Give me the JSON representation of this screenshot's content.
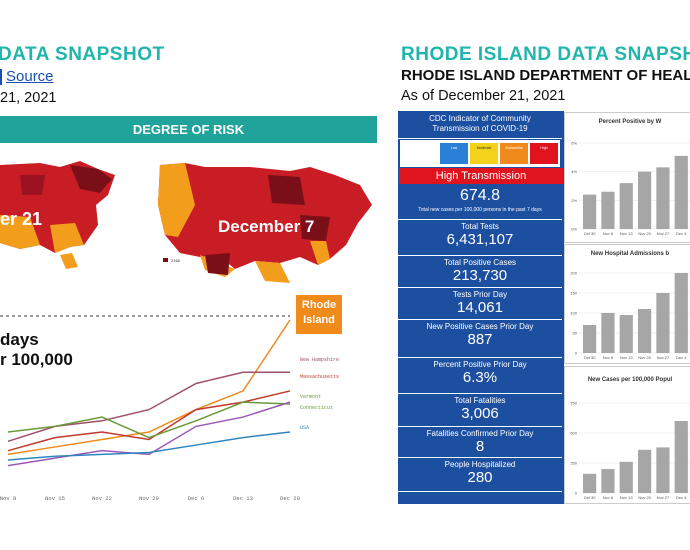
{
  "left": {
    "title": "DATA SNAPSHOT",
    "source_link": "Source",
    "date": "21, 2021",
    "risk_bar": "DEGREE OF RISK",
    "map_left_label": "er 21",
    "map_right_label": "December 7",
    "ri_callout": [
      "Rhode",
      "Island"
    ],
    "metric_line1": "days",
    "metric_line2": "r 100,000",
    "series_labels": [
      "New Hampshire",
      "Massachusetts",
      "Vermont",
      "Connecticut",
      "USA"
    ],
    "x_ticks": [
      "Nov 8",
      "Nov 15",
      "Nov 22",
      "Nov 29",
      "Dec 6",
      "Dec 13",
      "Dec 20"
    ],
    "legend_small": "2166"
  },
  "right": {
    "title": "RHODE ISLAND DATA SNAPSHOT",
    "subtitle": "RHODE ISLAND DEPARTMENT OF HEALTH",
    "date": "As of December 21, 2021",
    "cdc_title": "CDC Indicator of Community Transmission of COVID-19",
    "legend": [
      {
        "label": "Low",
        "color": "#2a7fd6"
      },
      {
        "label": "Moderate",
        "color": "#f2d21a"
      },
      {
        "label": "Substantial",
        "color": "#f08a1b"
      },
      {
        "label": "High",
        "color": "#e0141e"
      }
    ],
    "high_transmission": "High Transmission",
    "rate_value": "674.8",
    "rate_caption": "Total new cases per 100,000 persons in the past 7 days",
    "stats": [
      {
        "label": "Total Tests",
        "value": "6,431,107"
      },
      {
        "label": "Total Positive Cases",
        "value": "213,730"
      },
      {
        "label": "Tests Prior Day",
        "value": "14,061"
      },
      {
        "label": "New Positive Cases Prior Day",
        "value": "887"
      },
      {
        "label": "Percent Positive Prior Day",
        "value": "6.3%"
      },
      {
        "label": "Total Fatalities",
        "value": "3,006"
      },
      {
        "label": "Fatalities Confirmed Prior Day",
        "value": "8"
      },
      {
        "label": "People Hospitalized",
        "value": "280"
      }
    ]
  },
  "chart_data": [
    {
      "type": "bar",
      "title": "Percent Positive by W",
      "categories": [
        "Oct 30",
        "Nov 6",
        "Nov 13",
        "Nov 20",
        "Nov 27",
        "Dec 4"
      ],
      "values": [
        2.4,
        2.6,
        3.2,
        4.0,
        4.3,
        5.1
      ],
      "ylim": [
        0,
        6
      ],
      "yticks": [
        "0%",
        "2%",
        "4%",
        "6%"
      ]
    },
    {
      "type": "bar",
      "title": "New Hospital Admissions b",
      "categories": [
        "Oct 30",
        "Nov 6",
        "Nov 13",
        "Nov 20",
        "Nov 27",
        "Dec 4"
      ],
      "values": [
        70,
        100,
        95,
        110,
        150,
        200
      ],
      "ylim": [
        0,
        200
      ],
      "yticks": [
        "0",
        "50",
        "100",
        "150",
        "200"
      ]
    },
    {
      "type": "bar",
      "title": "New Cases per 100,000 Popul",
      "categories": [
        "Oct 30",
        "Nov 6",
        "Nov 13",
        "Nov 20",
        "Nov 27",
        "Dec 4"
      ],
      "values": [
        160,
        200,
        260,
        360,
        380,
        600
      ],
      "ylim": [
        0,
        750
      ],
      "yticks": [
        "0",
        "250",
        "500",
        "750"
      ]
    },
    {
      "type": "line",
      "title": "",
      "x": [
        "Nov 8",
        "Nov 15",
        "Nov 22",
        "Nov 29",
        "Dec 6",
        "Dec 13",
        "Dec 20"
      ],
      "series": [
        {
          "name": "Rhode Island",
          "color": "#f08a1b",
          "values": [
            180,
            220,
            260,
            300,
            420,
            520,
            900
          ]
        },
        {
          "name": "New Hampshire",
          "color": "#a0506a",
          "values": [
            250,
            330,
            360,
            420,
            560,
            620,
            620
          ]
        },
        {
          "name": "Massachusetts",
          "color": "#c0392b",
          "values": [
            200,
            270,
            300,
            260,
            420,
            460,
            520
          ]
        },
        {
          "name": "Vermont",
          "color": "#6a9a3a",
          "values": [
            300,
            330,
            380,
            270,
            360,
            460,
            450
          ]
        },
        {
          "name": "Connecticut",
          "color": "#9b59b6",
          "values": [
            120,
            160,
            200,
            180,
            330,
            380,
            460
          ]
        },
        {
          "name": "USA",
          "color": "#2e86c1",
          "values": [
            150,
            170,
            180,
            190,
            230,
            270,
            300
          ]
        }
      ]
    }
  ]
}
